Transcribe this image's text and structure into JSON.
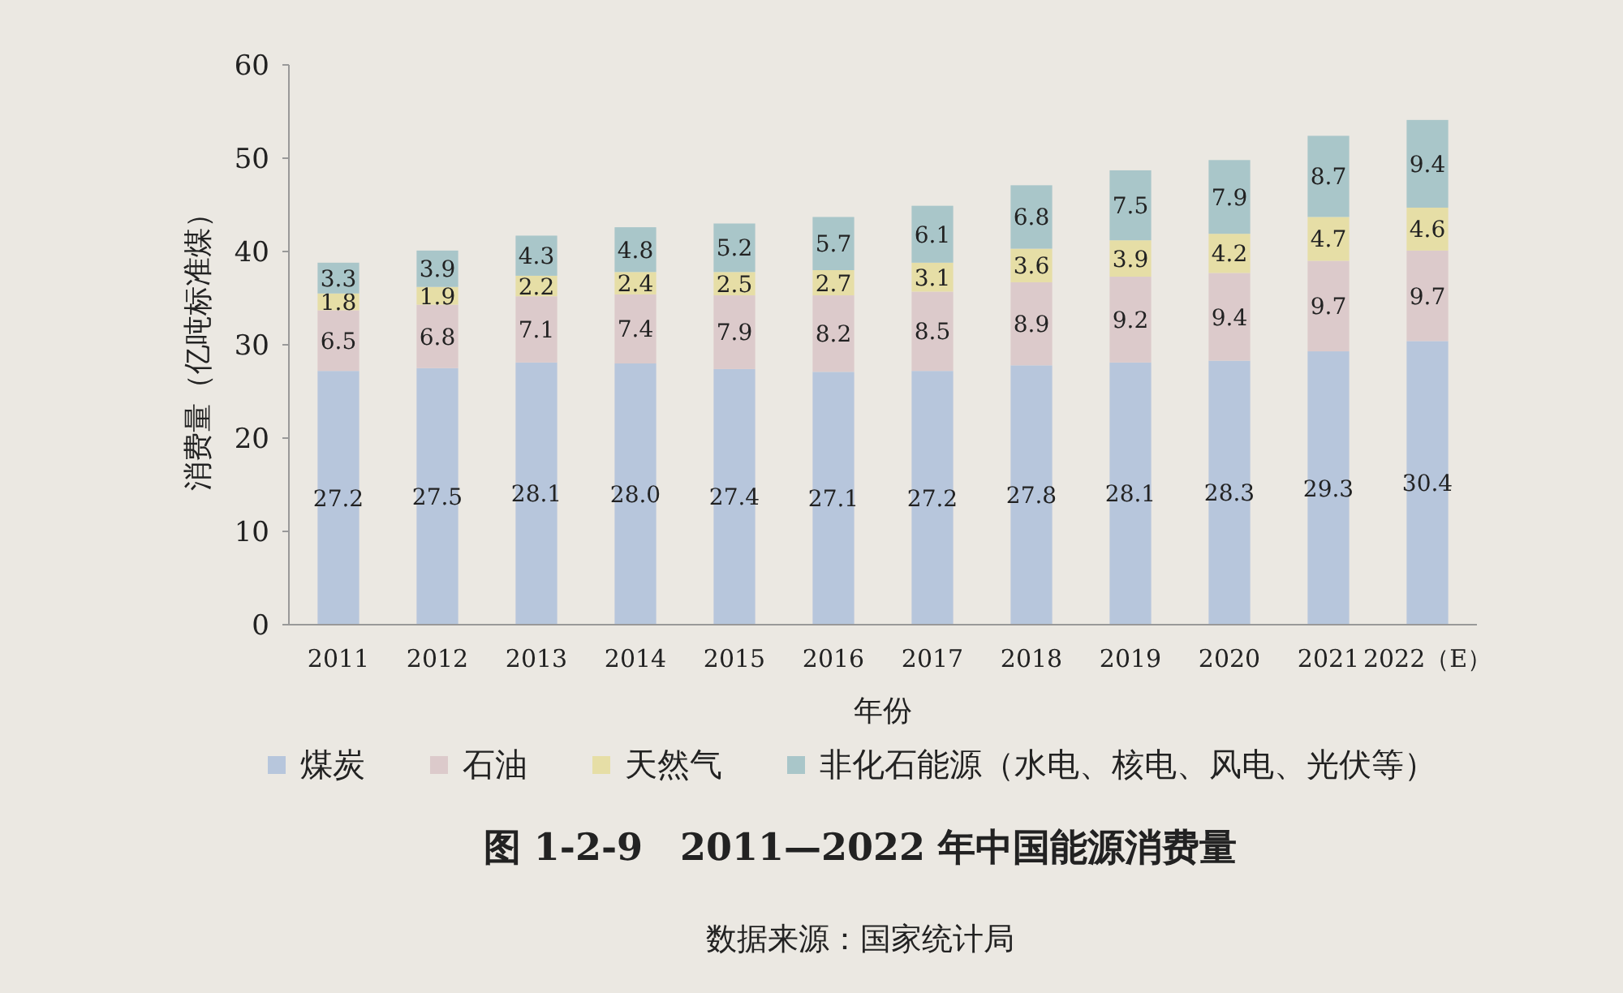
{
  "chart_data": {
    "type": "bar",
    "stacked": true,
    "data_labels": true,
    "legend": "bottom",
    "title": "图 1-2-9　2011—2022 年中国能源消费量",
    "xlabel": "年份",
    "ylabel": "消费量（亿吨标准煤）",
    "categories": [
      "2011",
      "2012",
      "2013",
      "2014",
      "2015",
      "2016",
      "2017",
      "2018",
      "2019",
      "2020",
      "2021",
      "2022（E）"
    ],
    "ylim": [
      0,
      60
    ],
    "yticks": [
      0,
      10,
      20,
      30,
      40,
      50,
      60
    ],
    "series": [
      {
        "name": "煤炭",
        "color": "#b7c6dc",
        "values": [
          27.2,
          27.5,
          28.1,
          28.0,
          27.4,
          27.1,
          27.2,
          27.8,
          28.1,
          28.3,
          29.3,
          30.4
        ],
        "value_labels": [
          "27.2",
          "27.5",
          "28.1",
          "28.0",
          "27.4",
          "27.1",
          "27.2",
          "27.8",
          "28.1",
          "28.3",
          "29.3",
          "30.4"
        ]
      },
      {
        "name": "石油",
        "color": "#dccacb",
        "values": [
          6.5,
          6.8,
          7.1,
          7.4,
          7.9,
          8.2,
          8.5,
          8.9,
          9.2,
          9.4,
          9.7,
          9.7
        ]
      },
      {
        "name": "天然气",
        "color": "#e6dea6",
        "values": [
          1.8,
          1.9,
          2.2,
          2.4,
          2.5,
          2.7,
          3.1,
          3.6,
          3.9,
          4.2,
          4.7,
          4.6
        ]
      },
      {
        "name": "非化石能源（水电、核电、风电、光伏等）",
        "color": "#a9c6c9",
        "values": [
          3.3,
          3.9,
          4.3,
          4.8,
          5.2,
          5.7,
          6.1,
          6.8,
          7.5,
          7.9,
          8.7,
          9.4
        ]
      }
    ],
    "annotations": [
      "数据来源：国家统计局"
    ]
  }
}
